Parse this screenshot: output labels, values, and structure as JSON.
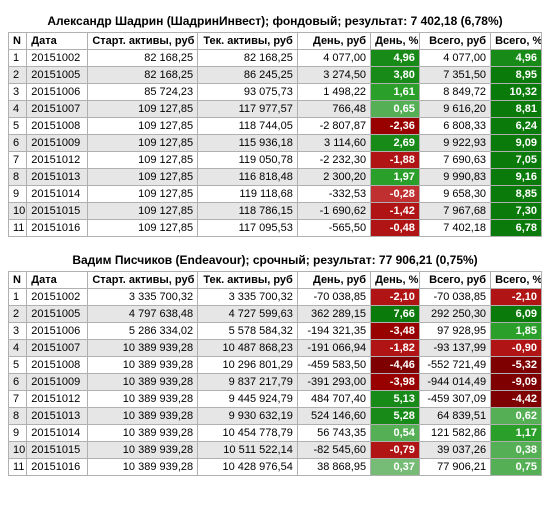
{
  "colors": {
    "green1": "#0a7a0a",
    "green2": "#178a17",
    "green3": "#2aa02a",
    "green4": "#55b055",
    "green5": "#76bb76",
    "red1": "#7e0000",
    "red2": "#990000",
    "red3": "#b01414",
    "red4": "#c03030"
  },
  "columns": [
    "N",
    "Дата",
    "Старт. активы, руб",
    "Тек. активы, руб",
    "День, руб",
    "День, %",
    "Всего, руб",
    "Всего, %"
  ],
  "tables": [
    {
      "title": "Александр Шадрин (ШадринИнвест); фондовый; результат: 7 402,18 (6,78%)",
      "rows": [
        {
          "n": 1,
          "date": "20151002",
          "start": "82 168,25",
          "cur": "82 168,25",
          "day": "4 077,00",
          "daypct": "4,96",
          "daypct_c": "green2",
          "total": "4 077,00",
          "totalpct": "4,96",
          "totalpct_c": "green2"
        },
        {
          "n": 2,
          "date": "20151005",
          "start": "82 168,25",
          "cur": "86 245,25",
          "day": "3 274,50",
          "daypct": "3,80",
          "daypct_c": "green2",
          "total": "7 351,50",
          "totalpct": "8,95",
          "totalpct_c": "green1"
        },
        {
          "n": 3,
          "date": "20151006",
          "start": "85 724,23",
          "cur": "93 075,73",
          "day": "1 498,22",
          "daypct": "1,61",
          "daypct_c": "green3",
          "total": "8 849,72",
          "totalpct": "10,32",
          "totalpct_c": "green1"
        },
        {
          "n": 4,
          "date": "20151007",
          "start": "109 127,85",
          "cur": "117 977,57",
          "day": "766,48",
          "daypct": "0,65",
          "daypct_c": "green4",
          "total": "9 616,20",
          "totalpct": "8,81",
          "totalpct_c": "green1"
        },
        {
          "n": 5,
          "date": "20151008",
          "start": "109 127,85",
          "cur": "118 744,05",
          "day": "-2 807,87",
          "daypct": "-2,36",
          "daypct_c": "red2",
          "total": "6 808,33",
          "totalpct": "6,24",
          "totalpct_c": "green1"
        },
        {
          "n": 6,
          "date": "20151009",
          "start": "109 127,85",
          "cur": "115 936,18",
          "day": "3 114,60",
          "daypct": "2,69",
          "daypct_c": "green2",
          "total": "9 922,93",
          "totalpct": "9,09",
          "totalpct_c": "green1"
        },
        {
          "n": 7,
          "date": "20151012",
          "start": "109 127,85",
          "cur": "119 050,78",
          "day": "-2 232,30",
          "daypct": "-1,88",
          "daypct_c": "red3",
          "total": "7 690,63",
          "totalpct": "7,05",
          "totalpct_c": "green1"
        },
        {
          "n": 8,
          "date": "20151013",
          "start": "109 127,85",
          "cur": "116 818,48",
          "day": "2 300,20",
          "daypct": "1,97",
          "daypct_c": "green3",
          "total": "9 990,83",
          "totalpct": "9,16",
          "totalpct_c": "green1"
        },
        {
          "n": 9,
          "date": "20151014",
          "start": "109 127,85",
          "cur": "119 118,68",
          "day": "-332,53",
          "daypct": "-0,28",
          "daypct_c": "red4",
          "total": "9 658,30",
          "totalpct": "8,85",
          "totalpct_c": "green1"
        },
        {
          "n": 10,
          "date": "20151015",
          "start": "109 127,85",
          "cur": "118 786,15",
          "day": "-1 690,62",
          "daypct": "-1,42",
          "daypct_c": "red3",
          "total": "7 967,68",
          "totalpct": "7,30",
          "totalpct_c": "green1"
        },
        {
          "n": 11,
          "date": "20151016",
          "start": "109 127,85",
          "cur": "117 095,53",
          "day": "-565,50",
          "daypct": "-0,48",
          "daypct_c": "red3",
          "total": "7 402,18",
          "totalpct": "6,78",
          "totalpct_c": "green1"
        }
      ]
    },
    {
      "title": "Вадим Писчиков (Endeavour); срочный; результат: 77 906,21 (0,75%)",
      "rows": [
        {
          "n": 1,
          "date": "20151002",
          "start": "3 335 700,32",
          "cur": "3 335 700,32",
          "day": "-70 038,85",
          "daypct": "-2,10",
          "daypct_c": "red3",
          "total": "-70 038,85",
          "totalpct": "-2,10",
          "totalpct_c": "red3"
        },
        {
          "n": 2,
          "date": "20151005",
          "start": "4 797 638,48",
          "cur": "4 727 599,63",
          "day": "362 289,15",
          "daypct": "7,66",
          "daypct_c": "green1",
          "total": "292 250,30",
          "totalpct": "6,09",
          "totalpct_c": "green1"
        },
        {
          "n": 3,
          "date": "20151006",
          "start": "5 286 334,02",
          "cur": "5 578 584,32",
          "day": "-194 321,35",
          "daypct": "-3,48",
          "daypct_c": "red2",
          "total": "97 928,95",
          "totalpct": "1,85",
          "totalpct_c": "green3"
        },
        {
          "n": 4,
          "date": "20151007",
          "start": "10 389 939,28",
          "cur": "10 487 868,23",
          "day": "-191 066,94",
          "daypct": "-1,82",
          "daypct_c": "red3",
          "total": "-93 137,99",
          "totalpct": "-0,90",
          "totalpct_c": "red3"
        },
        {
          "n": 5,
          "date": "20151008",
          "start": "10 389 939,28",
          "cur": "10 296 801,29",
          "day": "-459 583,50",
          "daypct": "-4,46",
          "daypct_c": "red1",
          "total": "-552 721,49",
          "totalpct": "-5,32",
          "totalpct_c": "red1"
        },
        {
          "n": 6,
          "date": "20151009",
          "start": "10 389 939,28",
          "cur": "9 837 217,79",
          "day": "-391 293,00",
          "daypct": "-3,98",
          "daypct_c": "red2",
          "total": "-944 014,49",
          "totalpct": "-9,09",
          "totalpct_c": "red1"
        },
        {
          "n": 7,
          "date": "20151012",
          "start": "10 389 939,28",
          "cur": "9 445 924,79",
          "day": "484 707,40",
          "daypct": "5,13",
          "daypct_c": "green2",
          "total": "-459 307,09",
          "totalpct": "-4,42",
          "totalpct_c": "red1"
        },
        {
          "n": 8,
          "date": "20151013",
          "start": "10 389 939,28",
          "cur": "9 930 632,19",
          "day": "524 146,60",
          "daypct": "5,28",
          "daypct_c": "green2",
          "total": "64 839,51",
          "totalpct": "0,62",
          "totalpct_c": "green4"
        },
        {
          "n": 9,
          "date": "20151014",
          "start": "10 389 939,28",
          "cur": "10 454 778,79",
          "day": "56 743,35",
          "daypct": "0,54",
          "daypct_c": "green4",
          "total": "121 582,86",
          "totalpct": "1,17",
          "totalpct_c": "green3"
        },
        {
          "n": 10,
          "date": "20151015",
          "start": "10 389 939,28",
          "cur": "10 511 522,14",
          "day": "-82 545,60",
          "daypct": "-0,79",
          "daypct_c": "red3",
          "total": "39 037,26",
          "totalpct": "0,38",
          "totalpct_c": "green4"
        },
        {
          "n": 11,
          "date": "20151016",
          "start": "10 389 939,28",
          "cur": "10 428 976,54",
          "day": "38 868,95",
          "daypct": "0,37",
          "daypct_c": "green5",
          "total": "77 906,21",
          "totalpct": "0,75",
          "totalpct_c": "green4"
        }
      ]
    }
  ]
}
